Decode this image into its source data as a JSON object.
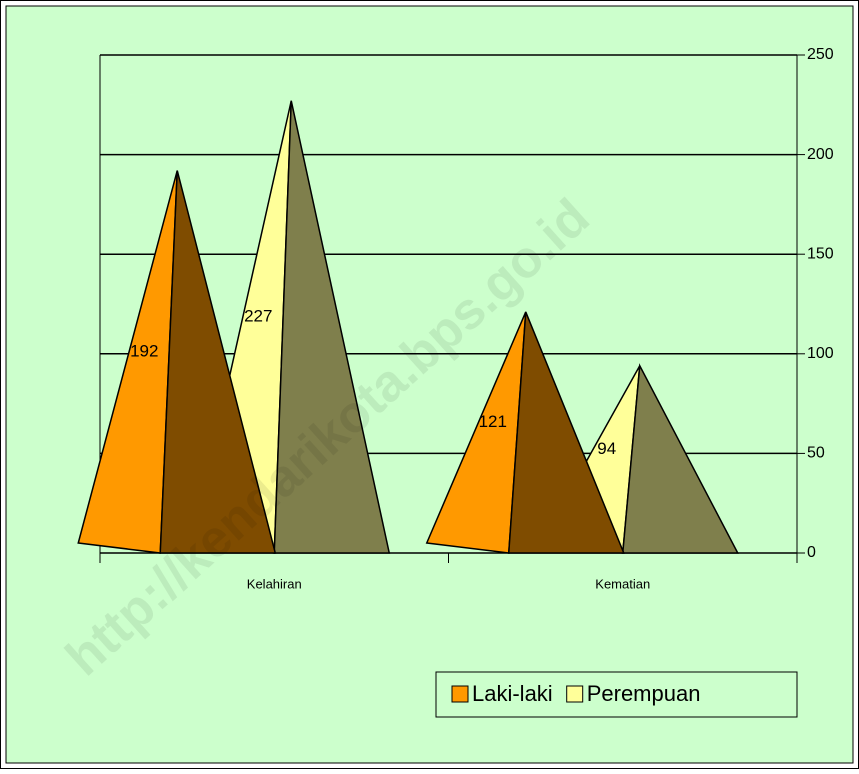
{
  "chart_data": {
    "type": "pyramid",
    "categories": [
      "Kelahiran",
      "Kematian"
    ],
    "series": [
      {
        "name": "Laki-laki",
        "color": "#ff9900",
        "values": [
          192,
          121
        ]
      },
      {
        "name": "Perempuan",
        "color": "#ffff99",
        "values": [
          227,
          94
        ]
      }
    ],
    "ylim": [
      0,
      250
    ],
    "yticks": [
      0,
      50,
      100,
      150,
      200,
      250
    ],
    "grid": true,
    "legend": "bottom-right",
    "watermark": "http://kendarikota.bps.go.id"
  }
}
